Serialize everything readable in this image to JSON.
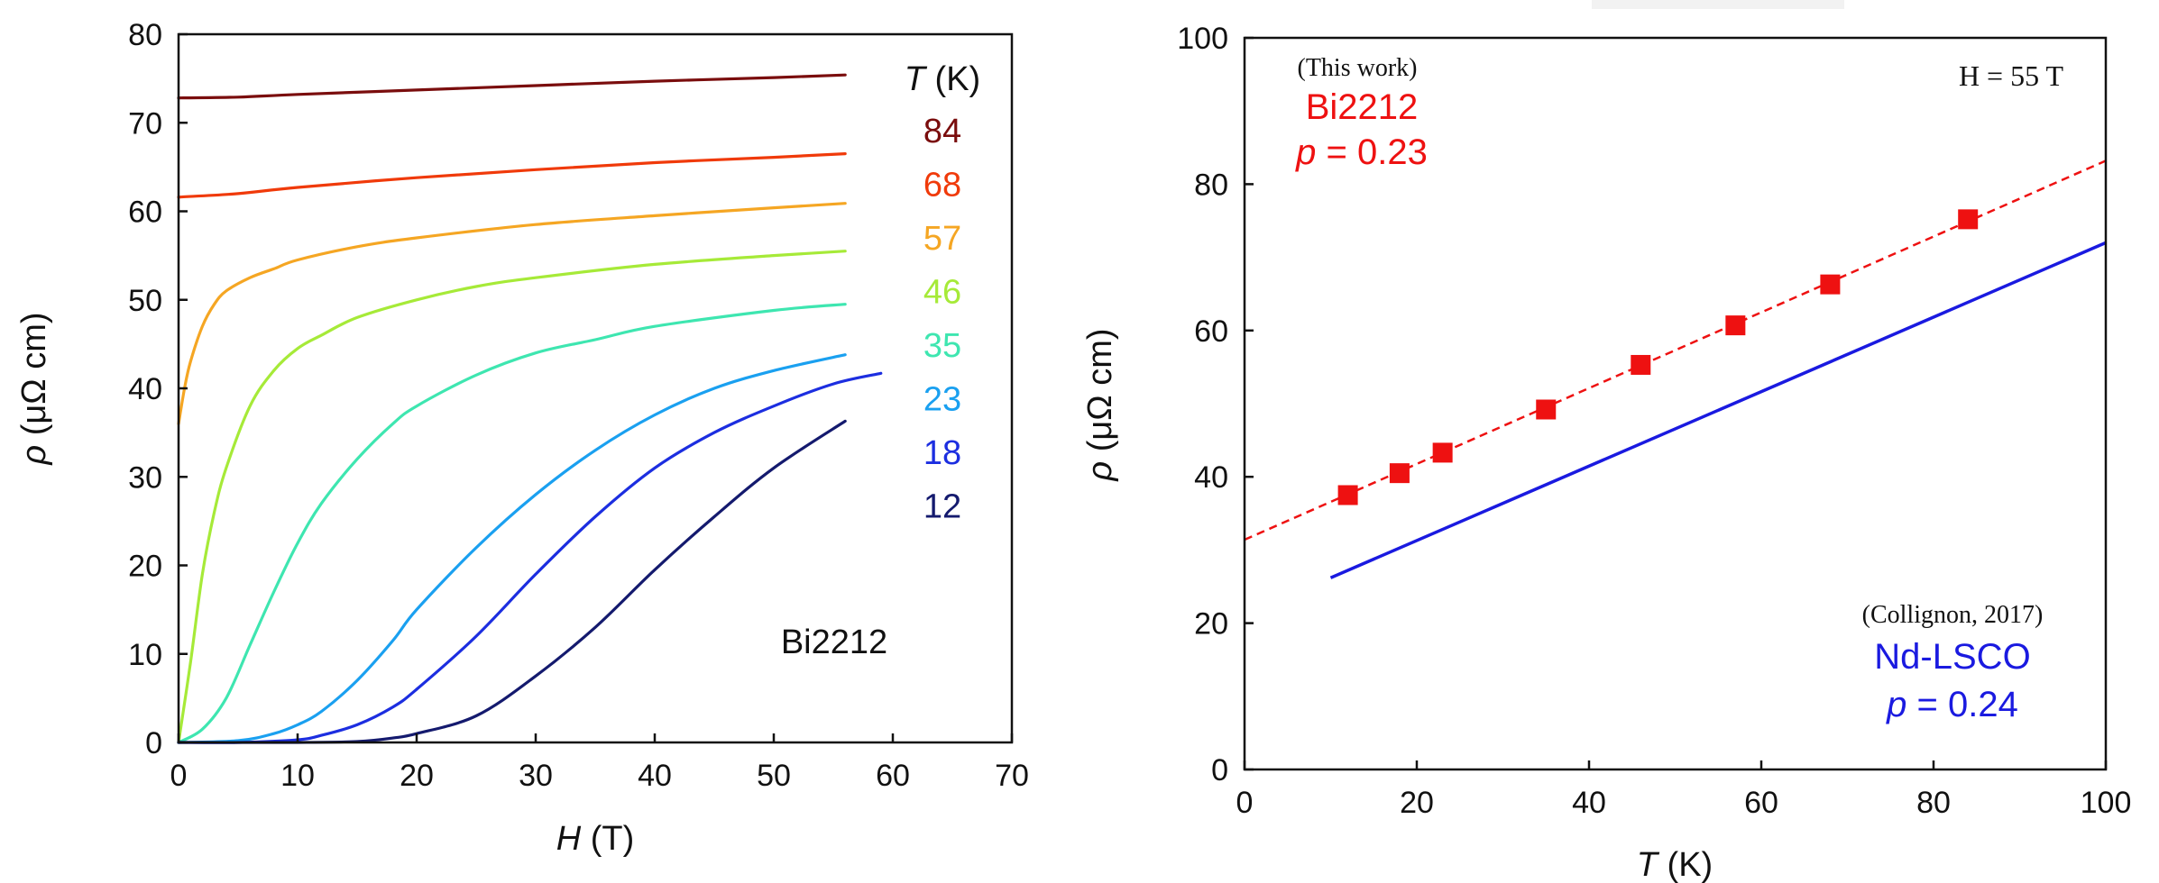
{
  "chart_data": [
    {
      "type": "line",
      "xlabel": {
        "sym": "H",
        "unit": " (T)"
      },
      "ylabel": {
        "sym": "ρ",
        "unit": " (μΩ cm)"
      },
      "xlim": [
        0,
        70
      ],
      "ylim": [
        0,
        80
      ],
      "xticks": [
        "0",
        "10",
        "20",
        "30",
        "40",
        "50",
        "60",
        "70"
      ],
      "yticks": [
        "0",
        "10",
        "20",
        "30",
        "40",
        "50",
        "60",
        "70",
        "80"
      ],
      "legend_title": {
        "sym": "T",
        "unit": " (K)"
      },
      "annotation": "Bi2212",
      "series": [
        {
          "name": "84",
          "color": "#7a0d0d",
          "x": [
            0,
            5,
            10,
            20,
            30,
            40,
            50,
            56
          ],
          "y": [
            72.8,
            72.9,
            73.2,
            73.7,
            74.2,
            74.7,
            75.1,
            75.4
          ]
        },
        {
          "name": "68",
          "color": "#f03a0a",
          "x": [
            0,
            5,
            10,
            20,
            30,
            40,
            50,
            56
          ],
          "y": [
            61.6,
            62.0,
            62.7,
            63.8,
            64.7,
            65.5,
            66.1,
            66.5
          ]
        },
        {
          "name": "57",
          "color": "#f5a623",
          "x": [
            0,
            0.5,
            1,
            2,
            3,
            4,
            6,
            8,
            10,
            15,
            20,
            30,
            40,
            50,
            56
          ],
          "y": [
            36,
            40,
            43,
            47,
            49.5,
            51,
            52.5,
            53.5,
            54.5,
            56,
            57,
            58.5,
            59.5,
            60.4,
            60.9
          ]
        },
        {
          "name": "46",
          "color": "#a6ea38",
          "x": [
            0,
            1,
            2,
            3,
            4,
            6,
            8,
            10,
            12,
            15,
            20,
            25,
            30,
            40,
            50,
            56
          ],
          "y": [
            0,
            9,
            19,
            26,
            31,
            38,
            42,
            44.5,
            46,
            48,
            50,
            51.5,
            52.5,
            54,
            55,
            55.5
          ]
        },
        {
          "name": "35",
          "color": "#3ee6b0",
          "x": [
            0,
            2,
            4,
            6,
            8,
            10,
            12,
            15,
            18,
            20,
            25,
            30,
            35,
            40,
            50,
            56
          ],
          "y": [
            0,
            1.5,
            5,
            11,
            17,
            22.5,
            27,
            32,
            36,
            38,
            41.5,
            44,
            45.5,
            47,
            48.8,
            49.5
          ]
        },
        {
          "name": "23",
          "color": "#1aa0f0",
          "x": [
            0,
            5,
            8,
            10,
            12,
            15,
            18,
            20,
            25,
            30,
            35,
            40,
            45,
            50,
            56
          ],
          "y": [
            0,
            0.2,
            1,
            2,
            3.5,
            7,
            11.5,
            15,
            22,
            28,
            33,
            37,
            40,
            42,
            43.8
          ]
        },
        {
          "name": "18",
          "color": "#1c2ee0",
          "x": [
            0,
            5,
            10,
            12,
            15,
            18,
            20,
            25,
            30,
            35,
            40,
            45,
            50,
            55,
            59
          ],
          "y": [
            0,
            0,
            0.3,
            0.8,
            2,
            4,
            6,
            12,
            19,
            25.5,
            31,
            35,
            38,
            40.5,
            41.7
          ]
        },
        {
          "name": "12",
          "color": "#141a6e",
          "x": [
            0,
            10,
            15,
            18,
            20,
            25,
            30,
            35,
            40,
            45,
            50,
            56
          ],
          "y": [
            0,
            0,
            0.1,
            0.5,
            1,
            3,
            7.5,
            13,
            19.5,
            25.5,
            31,
            36.3
          ]
        }
      ]
    },
    {
      "type": "scatter",
      "xlabel": {
        "sym": "T",
        "unit": " (K)"
      },
      "ylabel": {
        "sym": "ρ",
        "unit": " (μΩ cm)"
      },
      "xlim": [
        0,
        100
      ],
      "ylim": [
        0,
        100
      ],
      "xticks": [
        "0",
        "20",
        "40",
        "60",
        "80",
        "100"
      ],
      "yticks": [
        "0",
        "20",
        "40",
        "60",
        "80",
        "100"
      ],
      "field_label": "H = 55 T",
      "series": [
        {
          "name": "Bi2212",
          "source_note": "(This work)",
          "doping": {
            "sym": "p",
            "value": " = 0.23"
          },
          "color": "#ee1111",
          "marker": "square",
          "x": [
            12,
            18,
            23,
            35,
            46,
            57,
            68,
            84
          ],
          "y": [
            37.5,
            40.5,
            43.3,
            49.2,
            55.3,
            60.7,
            66.3,
            75.2
          ],
          "fit": {
            "style": "dashed",
            "x": [
              0,
              100
            ],
            "y": [
              31.4,
              83.2
            ]
          }
        },
        {
          "name": "Nd-LSCO",
          "source_note": "(Collignon, 2017)",
          "doping": {
            "sym": "p",
            "value": " = 0.24"
          },
          "color": "#1a1ae0",
          "line": {
            "style": "solid",
            "x": [
              10,
              100
            ],
            "y": [
              26.2,
              72.0
            ]
          }
        }
      ]
    }
  ]
}
